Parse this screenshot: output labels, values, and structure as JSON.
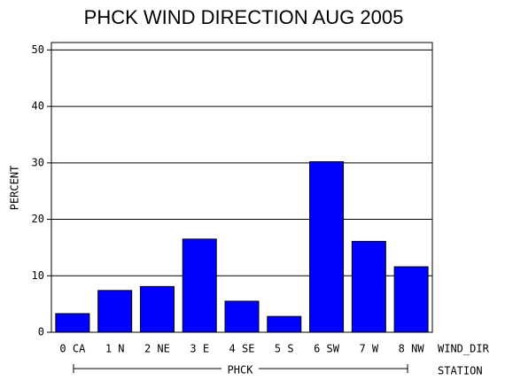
{
  "chart_data": {
    "type": "bar",
    "title": "PHCK WIND DIRECTION AUG 2005",
    "y_label": "PERCENT",
    "x_label": "WIND_DIR",
    "group_label": "PHCK",
    "group_axis_label": "STATION",
    "categories": [
      "0 CA",
      "1 N",
      "2 NE",
      "3 E",
      "4 SE",
      "5 S",
      "6 SW",
      "7 W",
      "8 NW"
    ],
    "values": [
      3.3,
      7.4,
      8.1,
      16.5,
      5.5,
      2.8,
      30.2,
      16.1,
      11.6
    ],
    "color": "#0000ff",
    "ylim": [
      0,
      51
    ],
    "yticks": [
      0,
      10,
      20,
      30,
      40,
      50
    ],
    "grid": true
  }
}
